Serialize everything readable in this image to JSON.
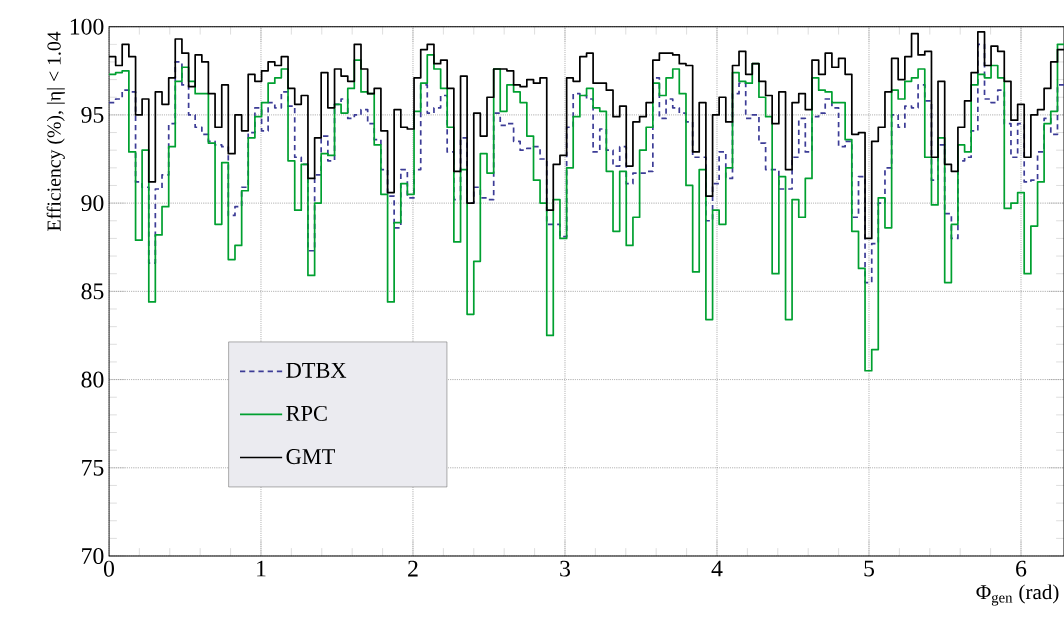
{
  "chart_data": {
    "type": "histogram",
    "xlabel": "Φ$_{gen}$ (rad)",
    "ylabel": "Efficiency (%), |η| < 1.04",
    "xlim": [
      0,
      6.283
    ],
    "ylim": [
      70,
      100
    ],
    "xticks": [
      0,
      1,
      2,
      3,
      4,
      5,
      6
    ],
    "yticks": [
      70,
      75,
      80,
      85,
      90,
      95,
      100
    ],
    "grid": true,
    "legend": "bottom left",
    "bins": [
      0,
      0.044,
      0.087,
      0.131,
      0.175,
      0.218,
      0.262,
      0.305,
      0.349,
      0.393,
      0.436,
      0.48,
      0.524,
      0.567,
      0.611,
      0.654,
      0.698,
      0.742,
      0.785,
      0.829,
      0.873,
      0.916,
      0.96,
      1.004,
      1.047,
      1.091,
      1.134,
      1.178,
      1.222,
      1.265,
      1.309,
      1.353,
      1.396,
      1.44,
      1.484,
      1.527,
      1.571,
      1.614,
      1.658,
      1.702,
      1.745,
      1.789,
      1.833,
      1.876,
      1.92,
      1.963,
      2.007,
      2.051,
      2.094,
      2.138,
      2.182,
      2.225,
      2.269,
      2.313,
      2.356,
      2.4,
      2.443,
      2.487,
      2.531,
      2.574,
      2.618,
      2.662,
      2.705,
      2.749,
      2.793,
      2.836,
      2.88,
      2.923,
      2.967,
      3.011,
      3.054,
      3.098,
      3.142,
      3.185,
      3.229,
      3.272,
      3.316,
      3.36,
      3.403,
      3.447,
      3.491,
      3.534,
      3.578,
      3.621,
      3.665,
      3.709,
      3.752,
      3.796,
      3.84,
      3.883,
      3.927,
      3.971,
      4.014,
      4.058,
      4.102,
      4.145,
      4.189,
      4.232,
      4.276,
      4.32,
      4.363,
      4.407,
      4.451,
      4.494,
      4.538,
      4.581,
      4.625,
      4.669,
      4.712,
      4.756,
      4.8,
      4.843,
      4.887,
      4.931,
      4.974,
      5.018,
      5.061,
      5.105,
      5.149,
      5.192,
      5.236,
      5.28,
      5.323,
      5.367,
      5.411,
      5.454,
      5.498,
      5.542,
      5.585,
      5.629,
      5.672,
      5.716,
      5.76,
      5.803,
      5.847,
      5.89,
      5.934,
      5.978,
      6.021,
      6.065,
      6.109,
      6.152,
      6.196,
      6.24,
      6.283
    ],
    "series": [
      {
        "name": "DTBX",
        "color": "#3c3c96",
        "line_style": "dashed",
        "values": [
          95.7,
          95.9,
          96.4,
          96.3,
          91.2,
          90.9,
          86.6,
          90.8,
          91.6,
          94.5,
          98.0,
          96.7,
          95.0,
          94.3,
          93.9,
          93.5,
          93.3,
          93.2,
          89.3,
          89.8,
          90.9,
          94.0,
          95.4,
          94.1,
          95.7,
          95.4,
          96.3,
          95.5,
          92.6,
          92.2,
          87.3,
          91.6,
          93.8,
          92.4,
          95.6,
          95.9,
          94.8,
          95.0,
          95.3,
          94.5,
          93.6,
          91.9,
          90.4,
          88.6,
          91.9,
          90.3,
          91.9,
          96.7,
          95.1,
          95.4,
          96.1,
          92.9,
          90.2,
          93.7,
          90.0,
          90.9,
          90.3,
          90.2,
          95.1,
          94.4,
          94.5,
          93.5,
          93.0,
          93.1,
          93.2,
          92.5,
          88.8,
          88.8,
          88.1,
          94.3,
          96.2,
          96.1,
          95.9,
          92.9,
          94.2,
          93.0,
          92.1,
          93.2,
          91.1,
          91.7,
          91.7,
          91.8,
          97.1,
          94.8,
          95.9,
          95.4,
          95.1,
          94.6,
          92.6,
          92.6,
          89.0,
          91.1,
          92.9,
          91.4,
          96.2,
          96.8,
          94.8,
          95.0,
          93.4,
          91.9,
          91.9,
          90.8,
          90.8,
          92.6,
          94.8,
          92.9,
          94.9,
          95.1,
          95.9,
          95.4,
          93.2,
          93.5,
          89.2,
          91.5,
          85.5,
          87.7,
          90.0,
          92.0,
          95.0,
          94.3,
          95.5,
          95.4,
          96.7,
          95.8,
          91.3,
          93.3,
          89.4,
          88.0,
          92.4,
          92.6,
          94.1,
          99.0,
          95.9,
          95.7,
          96.4,
          94.5,
          92.6,
          94.5,
          91.2,
          91.3,
          92.9,
          94.8,
          93.9,
          96.7
        ]
      },
      {
        "name": "RPC",
        "color": "#00a030",
        "line_style": "solid",
        "values": [
          97.3,
          97.4,
          97.5,
          92.9,
          87.9,
          93.0,
          84.4,
          88.2,
          89.8,
          93.2,
          96.9,
          97.7,
          96.9,
          96.2,
          96.2,
          93.4,
          88.8,
          92.3,
          86.8,
          87.6,
          90.7,
          93.7,
          94.9,
          95.7,
          96.8,
          97.1,
          97.6,
          92.4,
          89.6,
          92.2,
          85.9,
          90.0,
          92.8,
          92.7,
          95.6,
          95.1,
          96.5,
          98.1,
          96.3,
          96.2,
          93.3,
          90.5,
          84.4,
          88.9,
          91.1,
          90.5,
          95.2,
          96.8,
          98.4,
          97.6,
          96.5,
          94.3,
          87.8,
          91.9,
          83.7,
          86.7,
          92.8,
          91.7,
          97.6,
          95.2,
          96.7,
          96.3,
          95.7,
          93.8,
          91.3,
          90.0,
          82.5,
          90.2,
          88.0,
          92.0,
          94.9,
          96.1,
          96.5,
          95.4,
          95.2,
          91.8,
          88.4,
          91.8,
          87.6,
          89.2,
          93.0,
          94.3,
          96.8,
          96.1,
          97.1,
          97.6,
          96.2,
          91.0,
          86.1,
          91.9,
          83.4,
          89.6,
          88.8,
          92.0,
          97.4,
          96.9,
          96.8,
          97.9,
          96.0,
          94.9,
          86.0,
          91.5,
          83.4,
          90.2,
          89.2,
          91.4,
          97.1,
          96.4,
          96.3,
          95.7,
          95.7,
          93.6,
          88.4,
          86.3,
          80.5,
          81.7,
          90.3,
          88.6,
          96.4,
          95.9,
          96.9,
          97.1,
          97.6,
          92.6,
          89.9,
          93.7,
          85.5,
          88.8,
          93.3,
          92.9,
          96.7,
          97.3,
          97.1,
          97.8,
          97.1,
          89.7,
          90.0,
          90.6,
          86.0,
          88.7,
          91.2,
          94.5,
          95.2,
          99.0
        ]
      },
      {
        "name": "GMT",
        "color": "#000000",
        "line_style": "solid",
        "values": [
          98.3,
          97.8,
          99.0,
          98.3,
          95.0,
          95.9,
          91.2,
          96.3,
          95.6,
          97.1,
          99.3,
          98.5,
          96.6,
          98.4,
          98.0,
          96.2,
          94.3,
          96.7,
          92.8,
          95.0,
          94.1,
          97.3,
          96.9,
          97.5,
          98.0,
          97.8,
          98.3,
          96.5,
          95.6,
          96.1,
          91.4,
          93.7,
          97.4,
          95.4,
          97.6,
          97.2,
          96.9,
          99.0,
          97.6,
          96.2,
          96.5,
          94.1,
          90.6,
          95.3,
          94.3,
          94.2,
          97.1,
          98.7,
          99.0,
          97.9,
          98.1,
          96.5,
          91.8,
          97.2,
          90.0,
          95.1,
          93.8,
          96.0,
          97.6,
          97.6,
          97.5,
          96.7,
          96.6,
          97.0,
          96.8,
          97.1,
          89.6,
          92.2,
          92.7,
          97.1,
          96.9,
          98.3,
          98.5,
          96.8,
          96.8,
          96.4,
          94.9,
          95.5,
          92.1,
          94.6,
          94.9,
          95.7,
          98.1,
          98.5,
          98.5,
          98.4,
          97.9,
          97.8,
          92.9,
          95.7,
          90.4,
          95.0,
          96.0,
          94.6,
          97.8,
          98.6,
          97.3,
          97.9,
          96.9,
          96.1,
          94.5,
          96.3,
          91.9,
          95.7,
          96.2,
          95.3,
          98.1,
          97.3,
          98.5,
          97.7,
          98.2,
          97.3,
          93.9,
          94.0,
          88.0,
          93.5,
          94.3,
          96.3,
          98.2,
          97.0,
          98.3,
          99.6,
          98.4,
          98.6,
          92.6,
          96.9,
          92.2,
          91.8,
          94.3,
          95.8,
          97.4,
          99.7,
          97.8,
          98.9,
          98.6,
          96.9,
          94.7,
          95.6,
          92.6,
          95.0,
          95.3,
          96.5,
          98.0,
          98.7
        ]
      }
    ]
  }
}
